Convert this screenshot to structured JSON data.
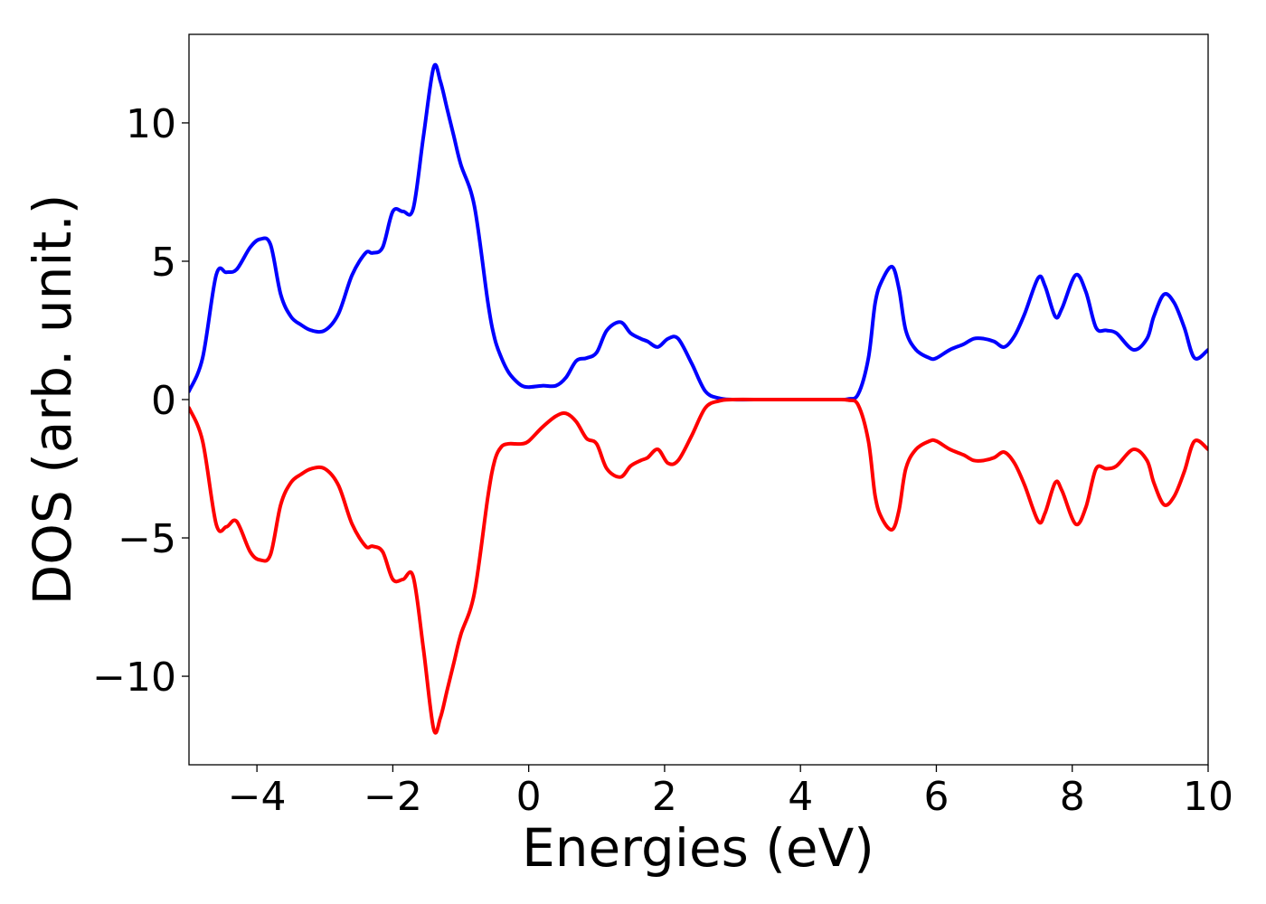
{
  "chart_data": {
    "type": "line",
    "title": "",
    "xlabel": "Energies (eV)",
    "ylabel": "DOS (arb. unit.)",
    "xlim": [
      -5,
      10
    ],
    "ylim": [
      -13.2,
      13.2
    ],
    "grid": false,
    "legend": "none",
    "x_ticks": [
      -4,
      -2,
      0,
      2,
      4,
      6,
      8,
      10
    ],
    "x_tick_labels": [
      "−4",
      "−2",
      "0",
      "2",
      "4",
      "6",
      "8",
      "10"
    ],
    "y_ticks": [
      10,
      5,
      0,
      -5,
      -10
    ],
    "y_tick_labels": [
      "10",
      "5",
      "0",
      "−5",
      "−10"
    ],
    "x": [
      -5.0,
      -4.8,
      -4.6,
      -4.45,
      -4.3,
      -4.1,
      -3.95,
      -3.8,
      -3.65,
      -3.5,
      -3.35,
      -3.2,
      -3.0,
      -2.8,
      -2.6,
      -2.4,
      -2.3,
      -2.15,
      -2.0,
      -1.85,
      -1.7,
      -1.55,
      -1.4,
      -1.3,
      -1.2,
      -1.1,
      -1.0,
      -0.8,
      -0.6,
      -0.5,
      -0.4,
      -0.3,
      -0.2,
      -0.1,
      0.0,
      0.2,
      0.4,
      0.55,
      0.7,
      0.85,
      1.0,
      1.15,
      1.35,
      1.5,
      1.65,
      1.75,
      1.9,
      2.05,
      2.2,
      2.4,
      2.6,
      2.8,
      3.0,
      3.5,
      4.0,
      4.5,
      4.7,
      4.85,
      5.0,
      5.1,
      5.2,
      5.35,
      5.45,
      5.55,
      5.7,
      5.9,
      6.0,
      6.2,
      6.4,
      6.55,
      6.7,
      6.85,
      7.0,
      7.15,
      7.3,
      7.5,
      7.6,
      7.75,
      7.85,
      8.05,
      8.2,
      8.35,
      8.5,
      8.65,
      8.9,
      9.1,
      9.2,
      9.35,
      9.5,
      9.65,
      9.8,
      10.0
    ],
    "series": [
      {
        "color": "#0000ff",
        "values": [
          0.3,
          1.5,
          4.5,
          4.6,
          4.7,
          5.5,
          5.8,
          5.6,
          3.8,
          3.0,
          2.7,
          2.5,
          2.5,
          3.1,
          4.5,
          5.3,
          5.3,
          5.5,
          6.8,
          6.8,
          6.9,
          9.5,
          12.0,
          11.5,
          10.5,
          9.5,
          8.5,
          7.0,
          3.5,
          2.2,
          1.5,
          1.0,
          0.7,
          0.5,
          0.45,
          0.5,
          0.5,
          0.8,
          1.4,
          1.5,
          1.7,
          2.5,
          2.8,
          2.4,
          2.2,
          2.1,
          1.9,
          2.2,
          2.2,
          1.3,
          0.3,
          0.05,
          0.0,
          0.0,
          0.0,
          0.0,
          0.02,
          0.2,
          1.5,
          3.5,
          4.3,
          4.8,
          4.0,
          2.5,
          1.8,
          1.5,
          1.5,
          1.8,
          2.0,
          2.2,
          2.2,
          2.1,
          1.9,
          2.3,
          3.1,
          4.4,
          4.1,
          3.0,
          3.3,
          4.5,
          3.9,
          2.6,
          2.5,
          2.4,
          1.8,
          2.2,
          3.0,
          3.8,
          3.5,
          2.6,
          1.5,
          1.8
        ]
      },
      {
        "color": "#ff0000",
        "values": [
          -0.3,
          -1.5,
          -4.5,
          -4.6,
          -4.4,
          -5.5,
          -5.8,
          -5.6,
          -3.8,
          -3.0,
          -2.7,
          -2.5,
          -2.5,
          -3.1,
          -4.5,
          -5.3,
          -5.3,
          -5.5,
          -6.5,
          -6.5,
          -6.4,
          -9.0,
          -11.9,
          -11.5,
          -10.5,
          -9.5,
          -8.5,
          -7.0,
          -3.5,
          -2.2,
          -1.7,
          -1.6,
          -1.6,
          -1.6,
          -1.5,
          -1.0,
          -0.6,
          -0.5,
          -0.8,
          -1.4,
          -1.6,
          -2.5,
          -2.8,
          -2.4,
          -2.2,
          -2.1,
          -1.8,
          -2.3,
          -2.2,
          -1.3,
          -0.3,
          -0.05,
          0.0,
          0.0,
          0.0,
          0.0,
          -0.02,
          -0.2,
          -1.5,
          -3.5,
          -4.3,
          -4.7,
          -4.0,
          -2.5,
          -1.8,
          -1.5,
          -1.5,
          -1.8,
          -2.0,
          -2.2,
          -2.2,
          -2.1,
          -1.9,
          -2.3,
          -3.1,
          -4.4,
          -4.1,
          -3.0,
          -3.3,
          -4.5,
          -3.9,
          -2.5,
          -2.5,
          -2.4,
          -1.8,
          -2.2,
          -3.0,
          -3.8,
          -3.5,
          -2.6,
          -1.5,
          -1.8
        ]
      }
    ]
  }
}
